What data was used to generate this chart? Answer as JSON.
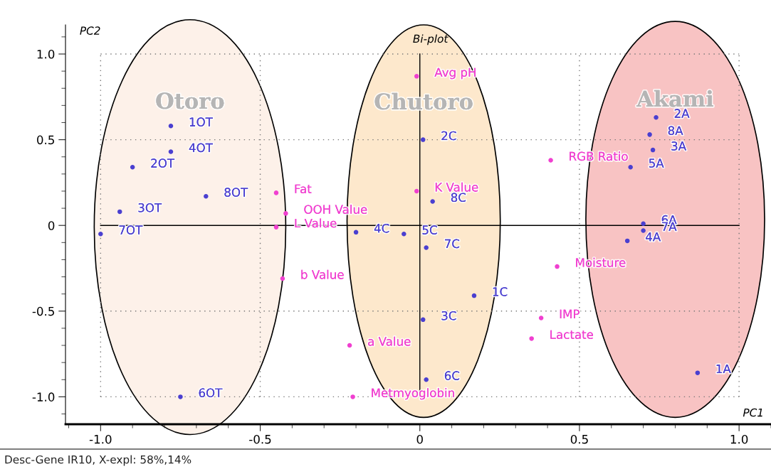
{
  "chart_data": {
    "type": "scatter",
    "title": "Bi-plot",
    "xlabel": "PC1",
    "ylabel": "PC2",
    "xlim": [
      -1.11,
      1.1
    ],
    "ylim": [
      -1.16,
      1.17
    ],
    "xticks": [
      {
        "value": -1.0,
        "label": "-1.0"
      },
      {
        "value": -0.5,
        "label": "-0.5"
      },
      0,
      {
        "value": 0.5,
        "label": "0.5"
      },
      {
        "value": 1.0,
        "label": "1.0"
      }
    ],
    "yticks": [
      {
        "value": -1.0,
        "label": "-1.0"
      },
      {
        "value": -0.5,
        "label": "-0.5"
      },
      0,
      {
        "value": 0.5,
        "label": "0.5"
      },
      {
        "value": 1.0,
        "label": "1.0"
      }
    ],
    "grid": true,
    "marker": "circle",
    "series": [
      {
        "name": "Otoro",
        "color": "#4a3fd0",
        "x": [
          -0.78,
          -0.78,
          -0.9,
          -0.67,
          -0.94,
          -1.0,
          -0.75
        ],
        "values": [
          0.58,
          0.43,
          0.34,
          0.17,
          0.08,
          -0.05,
          -1.0
        ]
      },
      {
        "name": "Chutoro",
        "color": "#4a3fd0",
        "x": [
          0.01,
          0.04,
          -0.2,
          -0.05,
          0.02,
          0.17,
          0.01,
          0.02
        ],
        "values": [
          0.5,
          0.14,
          -0.04,
          -0.05,
          -0.13,
          -0.41,
          -0.55,
          -0.9
        ]
      },
      {
        "name": "Akami",
        "color": "#4a3fd0",
        "x": [
          0.74,
          0.72,
          0.73,
          0.66,
          0.7,
          0.7,
          0.65,
          0.87
        ],
        "values": [
          0.63,
          0.53,
          0.44,
          0.34,
          0.01,
          -0.03,
          -0.09,
          -0.86
        ]
      },
      {
        "color": "#f040d0",
        "x": [
          -0.01,
          0.41,
          -0.01,
          -0.45,
          -0.42,
          -0.45,
          -0.43,
          0.43,
          0.38,
          0.35,
          -0.22,
          -0.21
        ],
        "values": [
          0.87,
          0.38,
          0.2,
          0.19,
          0.07,
          -0.01,
          -0.31,
          -0.24,
          -0.54,
          -0.66,
          -0.7,
          -1.0
        ]
      }
    ],
    "annotations": [
      {
        "text": "1OT",
        "x": -0.78,
        "y": 0.58
      },
      {
        "text": "4OT",
        "x": -0.78,
        "y": 0.43
      },
      {
        "text": "2OT",
        "x": -0.9,
        "y": 0.34
      },
      {
        "text": "8OT",
        "x": -0.67,
        "y": 0.17
      },
      {
        "text": "3OT",
        "x": -0.94,
        "y": 0.08
      },
      {
        "text": "7OT",
        "x": -1.0,
        "y": -0.05
      },
      {
        "text": "6OT",
        "x": -0.75,
        "y": -1.0
      },
      {
        "text": "2C",
        "x": 0.01,
        "y": 0.5
      },
      {
        "text": "8C",
        "x": 0.04,
        "y": 0.14
      },
      {
        "text": "4C",
        "x": -0.2,
        "y": -0.04
      },
      {
        "text": "5C",
        "x": -0.05,
        "y": -0.05
      },
      {
        "text": "7C",
        "x": 0.02,
        "y": -0.13
      },
      {
        "text": "1C",
        "x": 0.17,
        "y": -0.41
      },
      {
        "text": "3C",
        "x": 0.01,
        "y": -0.55
      },
      {
        "text": "6C",
        "x": 0.02,
        "y": -0.9
      },
      {
        "text": "2A",
        "x": 0.74,
        "y": 0.63
      },
      {
        "text": "8A",
        "x": 0.72,
        "y": 0.53
      },
      {
        "text": "3A",
        "x": 0.73,
        "y": 0.44
      },
      {
        "text": "5A",
        "x": 0.66,
        "y": 0.34
      },
      {
        "text": "6A",
        "x": 0.7,
        "y": 0.01
      },
      {
        "text": "7A",
        "x": 0.7,
        "y": -0.03
      },
      {
        "text": "4A",
        "x": 0.65,
        "y": -0.09
      },
      {
        "text": "1A",
        "x": 0.87,
        "y": -0.86
      },
      {
        "text": "Avg pH",
        "x": -0.01,
        "y": 0.87
      },
      {
        "text": "RGB Ratio",
        "x": 0.41,
        "y": 0.38
      },
      {
        "text": "K Value",
        "x": -0.01,
        "y": 0.2
      },
      {
        "text": "Fat",
        "x": -0.45,
        "y": 0.19
      },
      {
        "text": "OOH Value",
        "x": -0.42,
        "y": 0.07
      },
      {
        "text": "L Value",
        "x": -0.45,
        "y": -0.01
      },
      {
        "text": "b Value",
        "x": -0.43,
        "y": -0.31
      },
      {
        "text": "Moisture",
        "x": 0.43,
        "y": -0.24
      },
      {
        "text": "IMP",
        "x": 0.38,
        "y": -0.54
      },
      {
        "text": "Lactate",
        "x": 0.35,
        "y": -0.66
      },
      {
        "text": "a Value",
        "x": -0.22,
        "y": -0.7
      },
      {
        "text": "Metmyoglobin",
        "x": -0.21,
        "y": -1.0
      },
      "Desc-Gene IR10, X-expl: 58%,14%"
    ]
  }
}
